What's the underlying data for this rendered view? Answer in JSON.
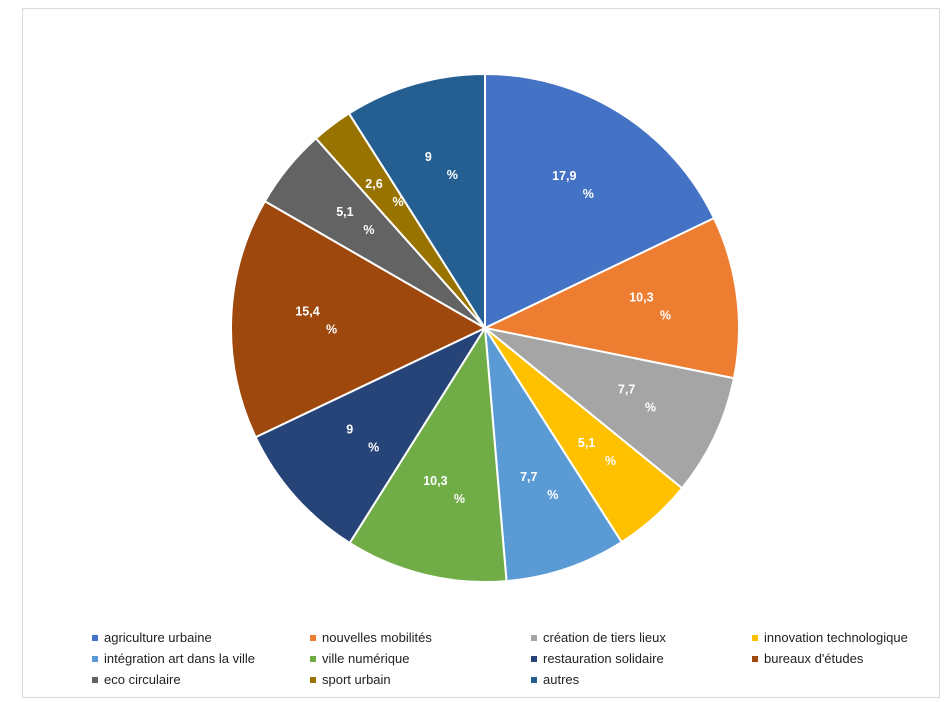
{
  "header": {
    "title_partial": ""
  },
  "chart_data": {
    "type": "pie",
    "title": "",
    "slices": [
      {
        "name": "agriculture urbaine",
        "value": 17.9,
        "label_value": "17,9",
        "label_unit": "%",
        "color": "#4472c4"
      },
      {
        "name": "nouvelles mobilités",
        "value": 10.3,
        "label_value": "10,3",
        "label_unit": "%",
        "color": "#ed7d31"
      },
      {
        "name": "création de tiers lieux",
        "value": 7.7,
        "label_value": "7,7",
        "label_unit": "%",
        "color": "#a5a5a5"
      },
      {
        "name": "innovation technologique",
        "value": 5.1,
        "label_value": "5,1",
        "label_unit": "%",
        "color": "#ffc000"
      },
      {
        "name": "intégration art dans la ville",
        "value": 7.7,
        "label_value": "7,7",
        "label_unit": "%",
        "color": "#5b9bd5"
      },
      {
        "name": "ville numérique",
        "value": 10.3,
        "label_value": "10,3",
        "label_unit": "%",
        "color": "#70ad47"
      },
      {
        "name": "restauration solidaire",
        "value": 9,
        "label_value": "9",
        "label_unit": "%",
        "color": "#264478"
      },
      {
        "name": "bureaux d'études",
        "value": 15.4,
        "label_value": "15,4",
        "label_unit": "%",
        "color": "#9e480e"
      },
      {
        "name": "eco circulaire",
        "value": 5.1,
        "label_value": "5,1",
        "label_unit": "%",
        "color": "#636363"
      },
      {
        "name": "sport urbain",
        "value": 2.6,
        "label_value": "2,6",
        "label_unit": "%",
        "color": "#997300"
      },
      {
        "name": "autres",
        "value": 9,
        "label_value": "9",
        "label_unit": "%",
        "color": "#255e91"
      }
    ],
    "legend_position": "bottom"
  }
}
